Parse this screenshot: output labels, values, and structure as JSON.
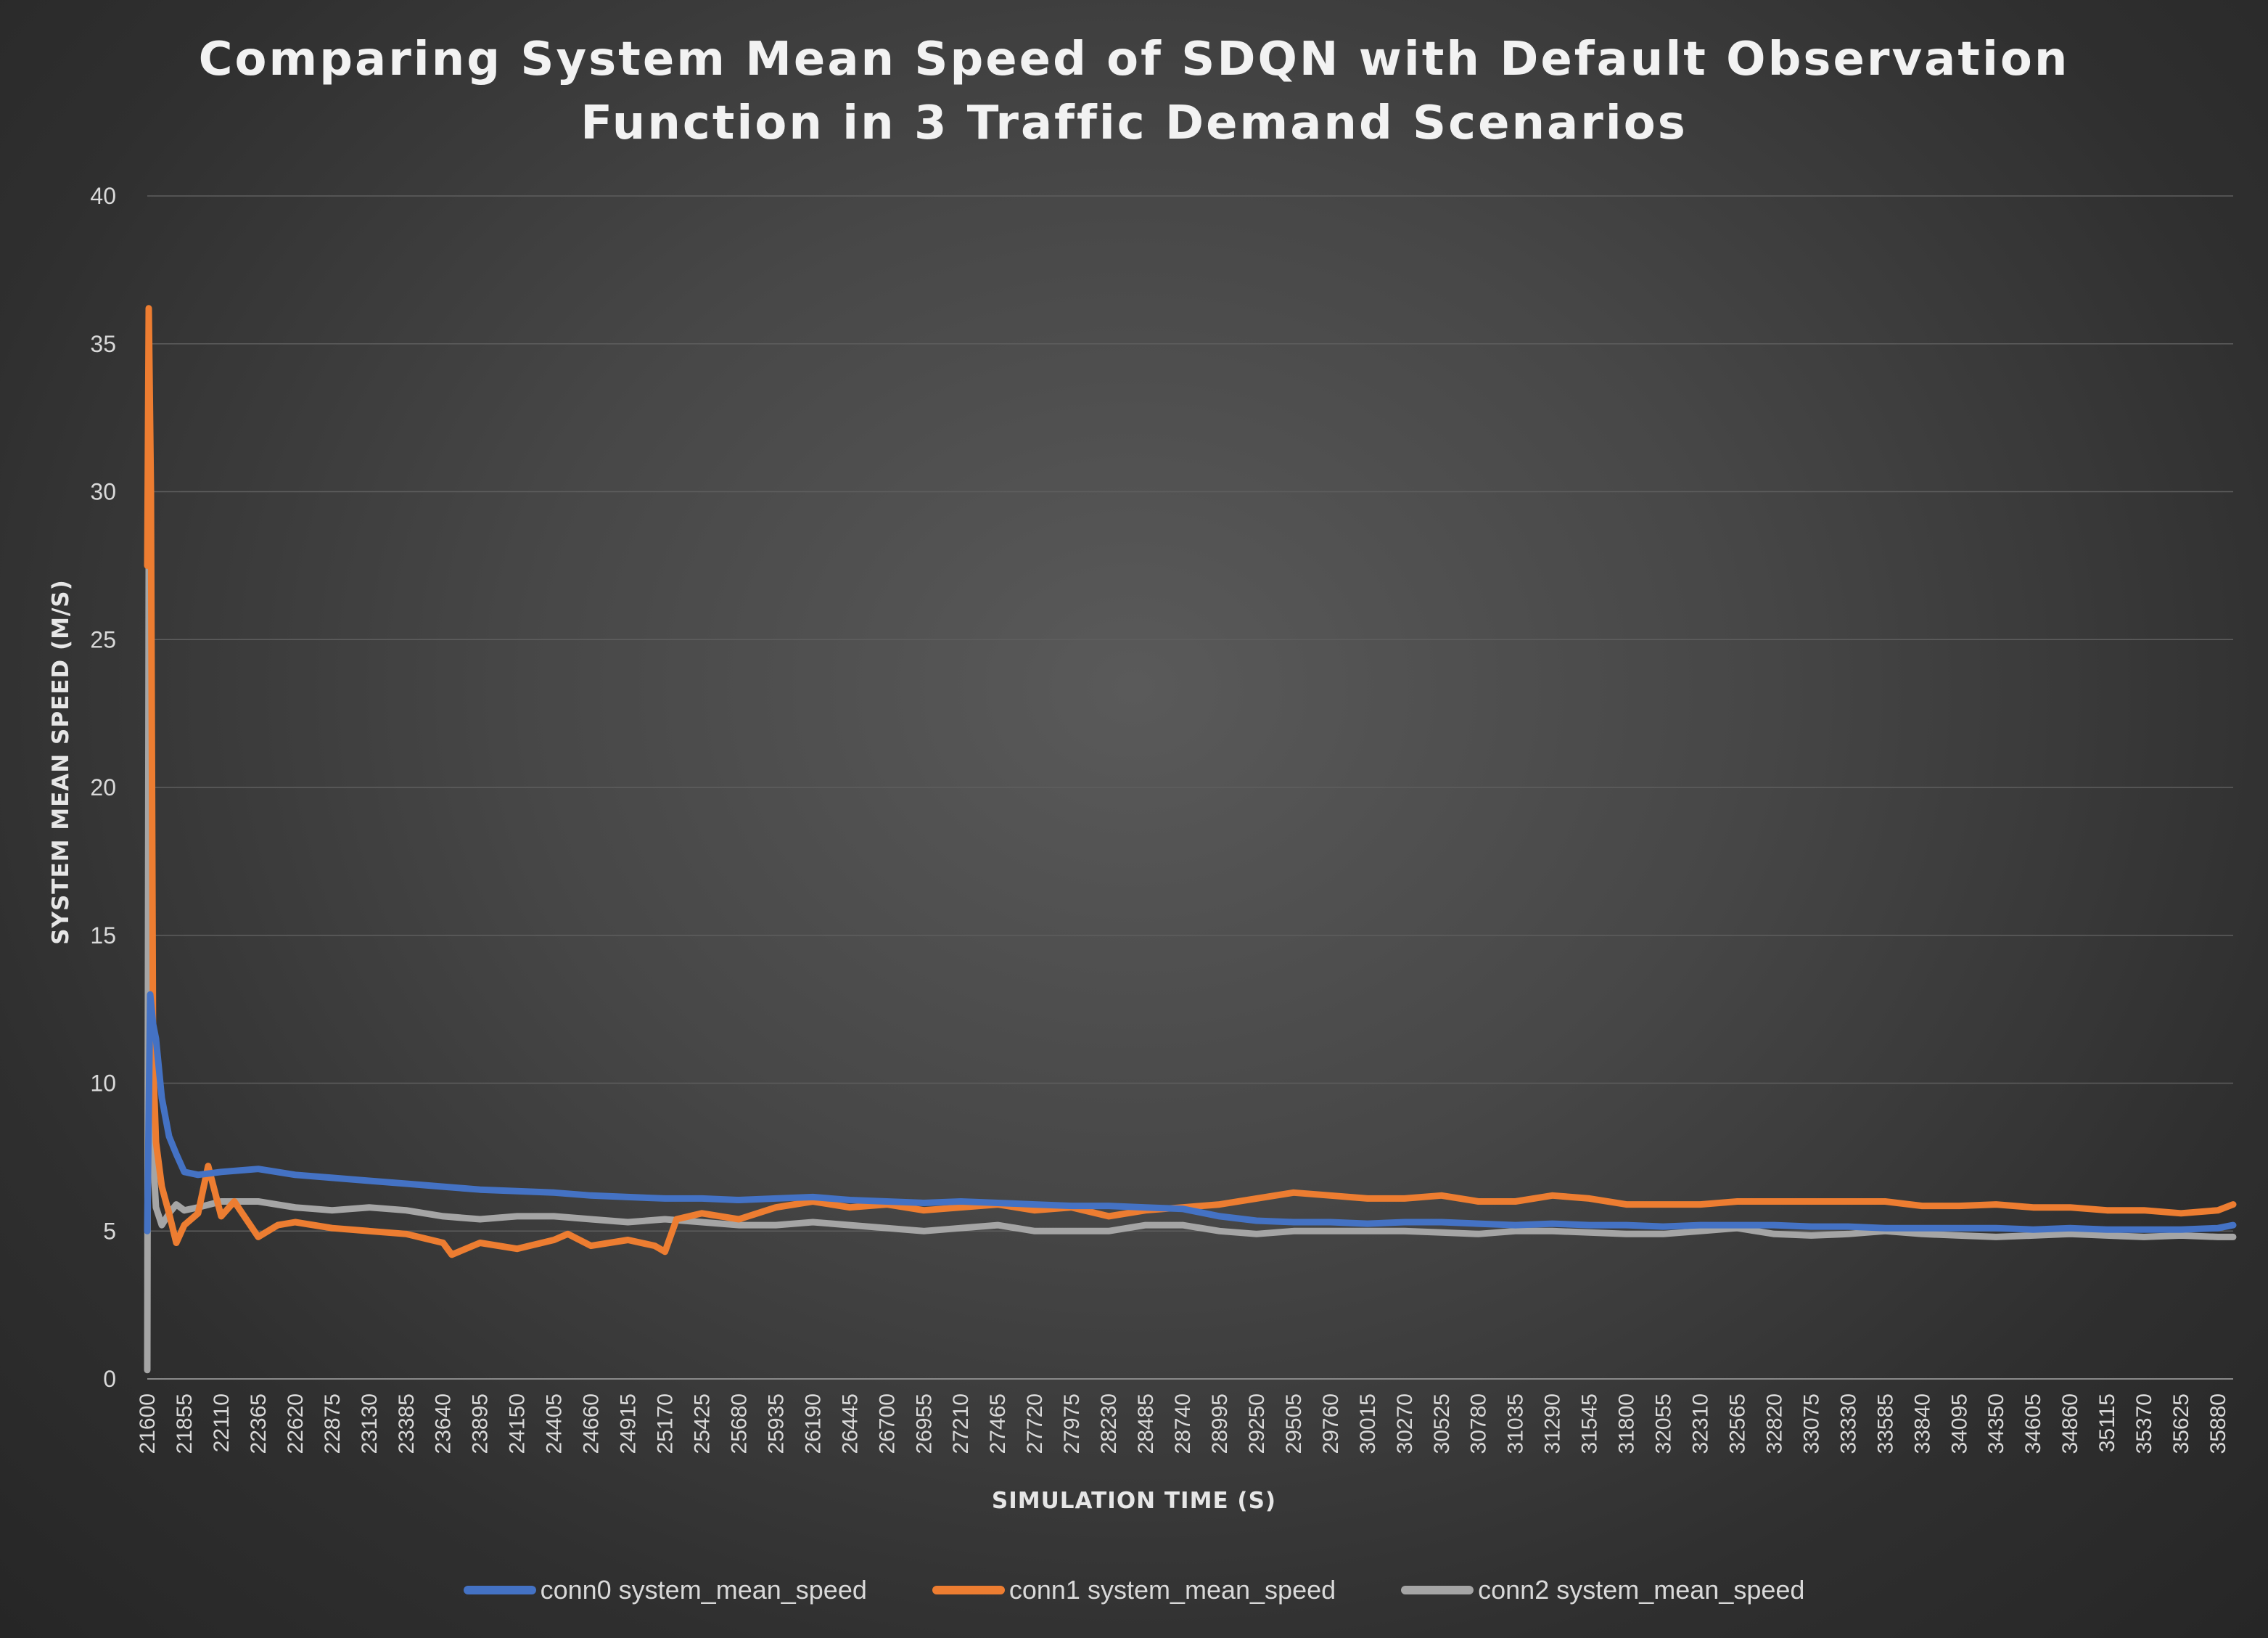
{
  "chart_data": {
    "type": "line",
    "title_lines": [
      "Comparing System Mean Speed of SDQN with Default Observation",
      "Function in 3 Traffic Demand Scenarios"
    ],
    "xlabel": "SIMULATION TIME (S)",
    "ylabel": "SYSTEM MEAN SPEED (M/S)",
    "ylim": [
      0,
      40
    ],
    "yticks": [
      0,
      5,
      10,
      15,
      20,
      25,
      30,
      35,
      40
    ],
    "xlim": [
      21600,
      35985
    ],
    "xtick_labels": [
      "21600",
      "21855",
      "22110",
      "22365",
      "22620",
      "22875",
      "23130",
      "23385",
      "23640",
      "23895",
      "24150",
      "24405",
      "24660",
      "24915",
      "25170",
      "25425",
      "25680",
      "25935",
      "26190",
      "26445",
      "26700",
      "26955",
      "27210",
      "27465",
      "27720",
      "27975",
      "28230",
      "28485",
      "28740",
      "28995",
      "29250",
      "29505",
      "29760",
      "30015",
      "30270",
      "30525",
      "30780",
      "31035",
      "31290",
      "31545",
      "31800",
      "32055",
      "32310",
      "32565",
      "32820",
      "33075",
      "33330",
      "33585",
      "33840",
      "34095",
      "34350",
      "34605",
      "34860",
      "35115",
      "35370",
      "35625",
      "35880"
    ],
    "grid": true,
    "legend_position": "bottom",
    "series": [
      {
        "name": "conn0 system_mean_speed",
        "color": "#4472c4",
        "x": [
          21600,
          21620,
          21640,
          21660,
          21700,
          21750,
          21800,
          21855,
          21950,
          22110,
          22365,
          22620,
          22875,
          23130,
          23385,
          23640,
          23895,
          24150,
          24405,
          24660,
          24915,
          25170,
          25425,
          25680,
          25935,
          26190,
          26445,
          26700,
          26955,
          27210,
          27465,
          27720,
          27975,
          28230,
          28485,
          28740,
          28995,
          29250,
          29505,
          29760,
          30015,
          30270,
          30525,
          30780,
          31035,
          31290,
          31545,
          31800,
          32055,
          32310,
          32565,
          32820,
          33075,
          33330,
          33585,
          33840,
          34095,
          34350,
          34605,
          34860,
          35115,
          35370,
          35625,
          35880,
          35985
        ],
        "y": [
          5.0,
          13.0,
          12.0,
          11.5,
          9.5,
          8.2,
          7.6,
          7.0,
          6.9,
          7.0,
          7.1,
          6.9,
          6.8,
          6.7,
          6.6,
          6.5,
          6.4,
          6.35,
          6.3,
          6.2,
          6.15,
          6.1,
          6.1,
          6.05,
          6.1,
          6.15,
          6.05,
          6.0,
          5.95,
          6.0,
          5.95,
          5.9,
          5.85,
          5.85,
          5.8,
          5.75,
          5.5,
          5.35,
          5.3,
          5.3,
          5.25,
          5.3,
          5.3,
          5.25,
          5.2,
          5.25,
          5.2,
          5.2,
          5.15,
          5.2,
          5.2,
          5.2,
          5.15,
          5.15,
          5.1,
          5.1,
          5.1,
          5.1,
          5.05,
          5.1,
          5.05,
          5.05,
          5.05,
          5.1,
          5.2
        ]
      },
      {
        "name": "conn1 system_mean_speed",
        "color": "#ed7d31",
        "x": [
          21600,
          21610,
          21625,
          21640,
          21660,
          21700,
          21750,
          21800,
          21855,
          21950,
          22020,
          22110,
          22200,
          22365,
          22500,
          22620,
          22875,
          23130,
          23385,
          23640,
          23700,
          23895,
          24150,
          24405,
          24500,
          24660,
          24915,
          25100,
          25170,
          25250,
          25425,
          25680,
          25935,
          26190,
          26445,
          26700,
          26955,
          27210,
          27465,
          27720,
          27975,
          28230,
          28485,
          28740,
          28995,
          29250,
          29505,
          29760,
          30015,
          30270,
          30525,
          30780,
          31035,
          31290,
          31545,
          31800,
          32055,
          32310,
          32565,
          32820,
          33075,
          33330,
          33585,
          33840,
          34095,
          34350,
          34605,
          34860,
          35115,
          35370,
          35625,
          35880,
          35985
        ],
        "y": [
          27.5,
          36.2,
          30.0,
          10.8,
          8.0,
          6.5,
          5.6,
          4.6,
          5.2,
          5.6,
          7.2,
          5.5,
          6.0,
          4.8,
          5.2,
          5.3,
          5.1,
          5.0,
          4.9,
          4.6,
          4.2,
          4.6,
          4.4,
          4.7,
          4.9,
          4.5,
          4.7,
          4.5,
          4.3,
          5.4,
          5.6,
          5.4,
          5.8,
          6.0,
          5.8,
          5.9,
          5.7,
          5.8,
          5.9,
          5.7,
          5.8,
          5.5,
          5.7,
          5.8,
          5.9,
          6.1,
          6.3,
          6.2,
          6.1,
          6.1,
          6.2,
          6.0,
          6.0,
          6.2,
          6.1,
          5.9,
          5.9,
          5.9,
          6.0,
          6.0,
          6.0,
          6.0,
          6.0,
          5.85,
          5.85,
          5.9,
          5.8,
          5.8,
          5.7,
          5.7,
          5.6,
          5.7,
          5.9
        ]
      },
      {
        "name": "conn2 system_mean_speed",
        "color": "#a5a5a5",
        "x": [
          21600,
          21610,
          21625,
          21640,
          21660,
          21700,
          21750,
          21800,
          21855,
          21950,
          22110,
          22365,
          22620,
          22875,
          23130,
          23385,
          23640,
          23895,
          24150,
          24405,
          24660,
          24915,
          25170,
          25425,
          25680,
          25935,
          26190,
          26445,
          26700,
          26955,
          27210,
          27465,
          27720,
          27975,
          28230,
          28485,
          28740,
          28995,
          29250,
          29505,
          29760,
          30015,
          30270,
          30525,
          30780,
          31035,
          31290,
          31545,
          31800,
          32055,
          32310,
          32565,
          32820,
          33075,
          33330,
          33585,
          33840,
          34095,
          34350,
          34605,
          34860,
          35115,
          35370,
          35625,
          35880,
          35985
        ],
        "y": [
          0.3,
          27.5,
          15.0,
          7.5,
          5.8,
          5.2,
          5.6,
          5.9,
          5.7,
          5.8,
          6.0,
          6.0,
          5.8,
          5.7,
          5.8,
          5.7,
          5.5,
          5.4,
          5.5,
          5.5,
          5.4,
          5.3,
          5.4,
          5.3,
          5.2,
          5.2,
          5.3,
          5.2,
          5.1,
          5.0,
          5.1,
          5.2,
          5.0,
          5.0,
          5.0,
          5.2,
          5.2,
          5.0,
          4.9,
          5.0,
          5.0,
          5.0,
          5.0,
          4.95,
          4.9,
          5.0,
          5.0,
          4.95,
          4.9,
          4.9,
          5.0,
          5.1,
          4.9,
          4.85,
          4.9,
          5.0,
          4.9,
          4.85,
          4.8,
          4.85,
          4.9,
          4.85,
          4.8,
          4.85,
          4.8,
          4.8
        ]
      }
    ]
  }
}
